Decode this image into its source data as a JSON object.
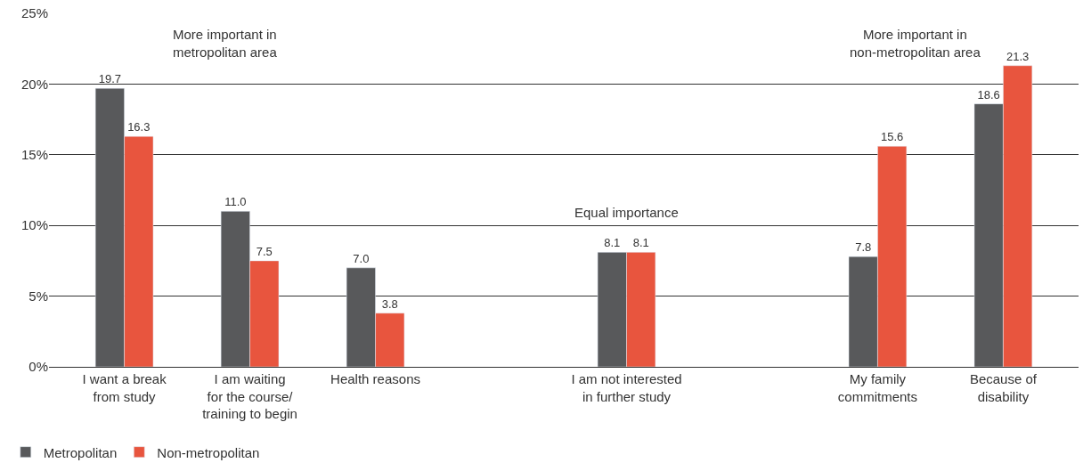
{
  "chart_data": {
    "type": "bar",
    "categories": [
      "I want a break\nfrom study",
      "I am waiting\nfor the course/\ntraining to begin",
      "Health reasons",
      null,
      "I am not interested\nin further study",
      null,
      "My family\ncommitments",
      "Because of\ndisability"
    ],
    "series": [
      {
        "name": "Metropolitan",
        "color": "#58595b",
        "values": [
          19.7,
          11.0,
          7.0,
          null,
          8.1,
          null,
          7.8,
          18.6
        ],
        "value_labels": [
          "19.7",
          "11.0",
          "7.0",
          null,
          "8.1",
          null,
          "7.8",
          "18.6"
        ]
      },
      {
        "name": "Non-metropolitan",
        "color": "#e8553e",
        "values": [
          16.3,
          7.5,
          3.8,
          null,
          8.1,
          null,
          15.6,
          21.3
        ],
        "value_labels": [
          "16.3",
          "7.5",
          "3.8",
          null,
          "8.1",
          null,
          "15.6",
          "21.3"
        ]
      }
    ],
    "ylim": [
      0,
      25
    ],
    "yticks": [
      {
        "value": 0,
        "label": "0%"
      },
      {
        "value": 5,
        "label": "5%"
      },
      {
        "value": 10,
        "label": "10%"
      },
      {
        "value": 15,
        "label": "15%"
      },
      {
        "value": 20,
        "label": "20%"
      },
      {
        "value": 25,
        "label": "25%"
      }
    ],
    "annotations": [
      "More important in\nmetropolitan area",
      "Equal importance",
      "More important in\nnon-metropolitan area"
    ],
    "grid": "y",
    "legend": "bottom left"
  }
}
